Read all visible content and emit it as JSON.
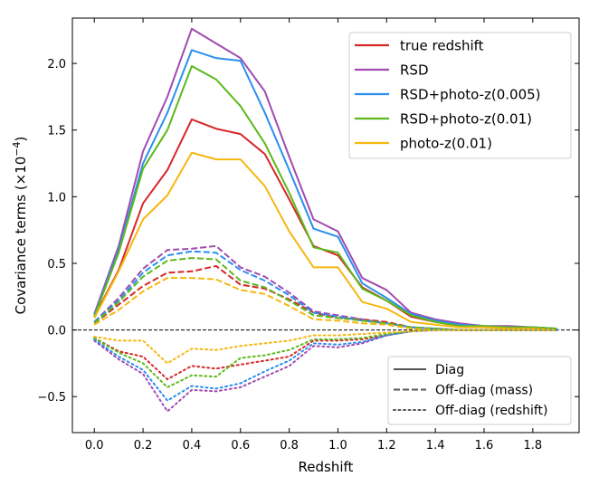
{
  "chart_data": {
    "type": "line",
    "xlabel": "Redshift",
    "ylabel": "Covariance terms (×10",
    "ylabel_exp": "−4",
    "ylabel_close": ")",
    "xlim": [
      -0.09,
      1.99
    ],
    "ylim": [
      -0.77,
      2.34
    ],
    "x_ticks": [
      0.0,
      0.2,
      0.4,
      0.6,
      0.8,
      1.0,
      1.2,
      1.4,
      1.6,
      1.8
    ],
    "x_tick_labels": [
      "0.0",
      "0.2",
      "0.4",
      "0.6",
      "0.8",
      "1.0",
      "1.2",
      "1.4",
      "1.6",
      "1.8"
    ],
    "y_ticks": [
      -0.5,
      0.0,
      0.5,
      1.0,
      1.5,
      2.0
    ],
    "y_tick_labels": [
      "−0.5",
      "0.0",
      "0.5",
      "1.0",
      "1.5",
      "2.0"
    ],
    "zero_line": true,
    "grid": false,
    "x": [
      0.0,
      0.1,
      0.2,
      0.3,
      0.4,
      0.5,
      0.6,
      0.7,
      0.8,
      0.9,
      1.0,
      1.1,
      1.2,
      1.3,
      1.4,
      1.5,
      1.6,
      1.7,
      1.8,
      1.9
    ],
    "series": [
      {
        "name": "true redshift",
        "color": "#d62728",
        "style": "solid",
        "values": [
          0.1,
          0.45,
          0.95,
          1.2,
          1.58,
          1.51,
          1.47,
          1.32,
          0.98,
          0.63,
          0.56,
          0.32,
          0.22,
          0.1,
          0.06,
          0.03,
          0.02,
          0.02,
          0.01,
          0.0
        ]
      },
      {
        "name": "RSD",
        "color": "#a14bb0",
        "style": "solid",
        "values": [
          0.12,
          0.63,
          1.34,
          1.75,
          2.26,
          2.15,
          2.04,
          1.79,
          1.3,
          0.83,
          0.74,
          0.39,
          0.3,
          0.13,
          0.08,
          0.05,
          0.03,
          0.03,
          0.02,
          0.01
        ]
      },
      {
        "name": "RSD+photo-z(0.005)",
        "color": "#2a8fef",
        "style": "solid",
        "values": [
          0.11,
          0.6,
          1.25,
          1.63,
          2.1,
          2.04,
          2.02,
          1.63,
          1.2,
          0.76,
          0.7,
          0.35,
          0.24,
          0.12,
          0.07,
          0.04,
          0.03,
          0.02,
          0.02,
          0.01
        ]
      },
      {
        "name": "RSD+photo-z(0.01)",
        "color": "#5cb81a",
        "style": "solid",
        "values": [
          0.1,
          0.58,
          1.21,
          1.5,
          1.98,
          1.88,
          1.68,
          1.4,
          1.03,
          0.62,
          0.58,
          0.31,
          0.22,
          0.11,
          0.06,
          0.03,
          0.03,
          0.02,
          0.02,
          0.01
        ]
      },
      {
        "name": "photo-z(0.01)",
        "color": "#f5b710",
        "style": "solid",
        "values": [
          0.09,
          0.44,
          0.83,
          1.01,
          1.33,
          1.28,
          1.28,
          1.08,
          0.74,
          0.47,
          0.47,
          0.21,
          0.16,
          0.06,
          0.04,
          0.02,
          0.02,
          0.01,
          0.01,
          0.0
        ]
      },
      {
        "name": "",
        "color": "#d62728",
        "style": "dashed",
        "values": [
          0.05,
          0.19,
          0.33,
          0.43,
          0.44,
          0.48,
          0.34,
          0.31,
          0.23,
          0.13,
          0.09,
          0.08,
          0.06,
          0.02,
          0.01,
          0.0,
          0.0,
          0.0,
          0.0,
          0.0
        ]
      },
      {
        "name": "",
        "color": "#a14bb0",
        "style": "dashed",
        "values": [
          0.06,
          0.24,
          0.46,
          0.6,
          0.61,
          0.63,
          0.47,
          0.4,
          0.28,
          0.14,
          0.11,
          0.08,
          0.05,
          0.02,
          0.01,
          0.0,
          0.0,
          0.0,
          0.0,
          0.0
        ]
      },
      {
        "name": "",
        "color": "#2a8fef",
        "style": "dashed",
        "values": [
          0.06,
          0.22,
          0.43,
          0.56,
          0.59,
          0.58,
          0.45,
          0.37,
          0.26,
          0.13,
          0.1,
          0.07,
          0.05,
          0.02,
          0.01,
          0.0,
          0.0,
          0.0,
          0.0,
          0.0
        ]
      },
      {
        "name": "",
        "color": "#5cb81a",
        "style": "dashed",
        "values": [
          0.05,
          0.21,
          0.4,
          0.52,
          0.54,
          0.53,
          0.37,
          0.32,
          0.22,
          0.11,
          0.09,
          0.07,
          0.05,
          0.02,
          0.01,
          0.0,
          0.0,
          0.0,
          0.0,
          0.0
        ]
      },
      {
        "name": "",
        "color": "#f5b710",
        "style": "dashed",
        "values": [
          0.04,
          0.15,
          0.29,
          0.39,
          0.39,
          0.38,
          0.3,
          0.27,
          0.18,
          0.08,
          0.07,
          0.05,
          0.04,
          0.01,
          0.0,
          0.0,
          0.0,
          0.0,
          0.0,
          0.0
        ]
      },
      {
        "name": "",
        "color": "#d62728",
        "style": "dotted",
        "values": [
          -0.06,
          -0.16,
          -0.2,
          -0.37,
          -0.27,
          -0.29,
          -0.26,
          -0.23,
          -0.2,
          -0.08,
          -0.08,
          -0.07,
          -0.04,
          -0.01,
          0.0,
          0.0,
          0.0,
          0.0,
          0.0,
          0.0
        ]
      },
      {
        "name": "",
        "color": "#a14bb0",
        "style": "dotted",
        "values": [
          -0.08,
          -0.22,
          -0.33,
          -0.61,
          -0.45,
          -0.46,
          -0.43,
          -0.35,
          -0.27,
          -0.12,
          -0.13,
          -0.1,
          -0.04,
          -0.01,
          0.0,
          0.0,
          0.0,
          0.0,
          0.0,
          0.0
        ]
      },
      {
        "name": "",
        "color": "#2a8fef",
        "style": "dotted",
        "values": [
          -0.07,
          -0.2,
          -0.3,
          -0.53,
          -0.42,
          -0.44,
          -0.4,
          -0.31,
          -0.23,
          -0.1,
          -0.11,
          -0.09,
          -0.04,
          -0.01,
          0.0,
          0.0,
          0.0,
          0.0,
          0.0,
          0.0
        ]
      },
      {
        "name": "",
        "color": "#5cb81a",
        "style": "dotted",
        "values": [
          -0.06,
          -0.17,
          -0.25,
          -0.43,
          -0.34,
          -0.35,
          -0.21,
          -0.19,
          -0.15,
          -0.07,
          -0.07,
          -0.06,
          -0.03,
          -0.01,
          0.0,
          0.0,
          0.0,
          0.0,
          0.0,
          0.0
        ]
      },
      {
        "name": "",
        "color": "#f5b710",
        "style": "dotted",
        "values": [
          -0.05,
          -0.08,
          -0.08,
          -0.25,
          -0.14,
          -0.15,
          -0.12,
          -0.1,
          -0.08,
          -0.04,
          -0.04,
          -0.03,
          -0.02,
          -0.01,
          0.0,
          0.0,
          0.0,
          0.0,
          0.0,
          0.0
        ]
      }
    ],
    "legend_series": {
      "placement": "top-right",
      "entries": [
        {
          "label": "true redshift",
          "color": "#d62728"
        },
        {
          "label": "RSD",
          "color": "#a14bb0"
        },
        {
          "label": "RSD+photo-z(0.005)",
          "color": "#2a8fef"
        },
        {
          "label": "RSD+photo-z(0.01)",
          "color": "#5cb81a"
        },
        {
          "label": "photo-z(0.01)",
          "color": "#f5b710"
        }
      ]
    },
    "legend_styles": {
      "placement": "lower-right",
      "entries": [
        {
          "label": "Diag",
          "style": "solid"
        },
        {
          "label": "Off-diag (mass)",
          "style": "dashed"
        },
        {
          "label": "Off-diag (redshift)",
          "style": "dotted"
        }
      ]
    }
  }
}
